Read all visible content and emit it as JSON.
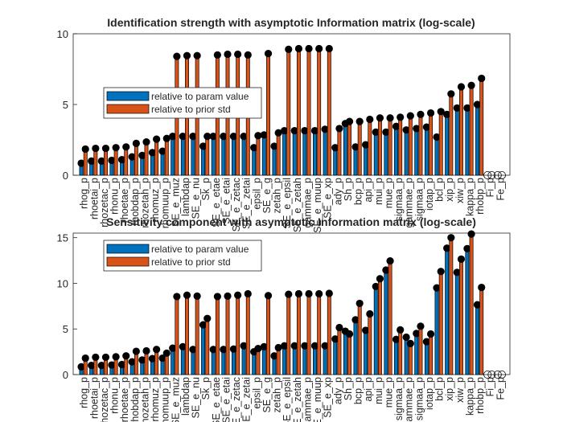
{
  "colors": {
    "blue": "#0072BD",
    "orange": "#D95319",
    "marker": "#000000",
    "axis": "#262626",
    "background": "#ffffff"
  },
  "chart_data": [
    {
      "type": "bar",
      "title": "Identification strength with asymptotic Information matrix (log-scale)",
      "ylim": [
        0,
        10
      ],
      "yticks": [
        0,
        5,
        10
      ],
      "grid": false,
      "legend_position": "upper-left",
      "marker": "filled-circle",
      "categories": [
        "rhog_p",
        "rhoetai_p",
        "rhozetac_p",
        "rhonu_p",
        "rhoetae_p",
        "rhobdap_p",
        "rhozetah_p",
        "rhomuz_p",
        "rhomuup_p",
        "SE_e_muz",
        "lambdap",
        "SE_e_nu",
        "Sk_p",
        "SE_e_etae",
        "SE_e_etai",
        "SE_e_zetac",
        "SE_e_zetai",
        "epsil_p",
        "SE_e_g",
        "zetah_p",
        "SE_e_epsil",
        "SE_e_zetah",
        "gammae_p",
        "SE_e_muup",
        "SE_e_xp",
        "ady_p",
        "Sh_p",
        "bcp_p",
        "api_p",
        "mui_p",
        "mue_p",
        "sigmaa_p",
        "gammae_p",
        "sigmaa_p",
        "iotap_p",
        "bcl_p",
        "xip_p",
        "xiw_p",
        "kappa_p",
        "rhobp_p",
        "Fi_p",
        "Fe_p"
      ],
      "series": [
        {
          "name": "relative to param value",
          "values": [
            0.85,
            1.0,
            1.0,
            1.05,
            1.1,
            1.3,
            1.4,
            1.6,
            1.7,
            2.75,
            2.75,
            2.75,
            2.05,
            2.75,
            2.75,
            2.75,
            2.75,
            1.95,
            2.85,
            2.05,
            3.15,
            3.15,
            3.15,
            3.15,
            3.25,
            1.95,
            3.65,
            2.0,
            2.15,
            3.05,
            3.05,
            3.45,
            3.2,
            3.3,
            3.4,
            2.7,
            4.3,
            4.75,
            4.75,
            5.0,
            0,
            0
          ]
        },
        {
          "name": "relative to prior std",
          "values": [
            1.85,
            1.9,
            1.9,
            1.95,
            2.0,
            2.25,
            2.35,
            2.55,
            2.6,
            8.4,
            8.45,
            8.45,
            2.75,
            8.5,
            8.55,
            8.55,
            8.5,
            2.8,
            8.6,
            3.0,
            8.9,
            8.95,
            8.95,
            8.95,
            8.95,
            3.3,
            3.8,
            3.8,
            3.95,
            4.05,
            4.05,
            4.1,
            4.2,
            4.3,
            4.4,
            4.5,
            5.75,
            6.25,
            6.35,
            6.85,
            0,
            0
          ]
        }
      ]
    },
    {
      "type": "bar",
      "title": "Sensitivity component with asymptotic Information matrix (log-scale)",
      "ylim": [
        0,
        15.5
      ],
      "yticks": [
        0,
        5,
        10,
        15
      ],
      "grid": false,
      "legend_position": "upper-left",
      "marker": "filled-circle",
      "categories": [
        "rhog_p",
        "rhoetai_p",
        "rhozetac_p",
        "rhonu_p",
        "rhoetae_p",
        "rhobdap_p",
        "rhozetah_p",
        "rhomuz_p",
        "rhomuup_p",
        "SE_e_muz",
        "lambdap",
        "SE_e_nu",
        "Sk_p",
        "SE_e_etae",
        "SE_e_etai",
        "SE_e_zetac",
        "SE_e_zetai",
        "epsil_p",
        "SE_e_g",
        "zetah_p",
        "SE_e_epsil",
        "SE_e_zetah",
        "gammae_p",
        "SE_e_muup",
        "SE_e_xp",
        "ady_p",
        "Sh_p",
        "bcp_p",
        "api_p",
        "mui_p",
        "mue_p",
        "sigmaa_p",
        "gammae_p",
        "sigmaa_p",
        "iotap_p",
        "bcl_p",
        "xip_p",
        "xiw_p",
        "kappa_p",
        "rhobp_p",
        "Fi_p",
        "Fe_p"
      ],
      "series": [
        {
          "name": "relative to param value",
          "values": [
            0.85,
            1.0,
            1.0,
            1.05,
            1.1,
            1.4,
            1.6,
            1.75,
            1.8,
            2.9,
            3.05,
            2.75,
            5.45,
            2.75,
            2.75,
            2.8,
            3.15,
            2.5,
            3.05,
            2.05,
            3.15,
            3.15,
            3.15,
            3.15,
            3.15,
            3.9,
            4.75,
            6.0,
            4.85,
            9.65,
            11.45,
            3.85,
            4.1,
            4.5,
            3.6,
            9.5,
            13.85,
            11.2,
            13.8,
            7.65,
            0,
            0
          ]
        },
        {
          "name": "relative to prior std",
          "values": [
            1.8,
            1.9,
            1.9,
            1.95,
            2.05,
            2.55,
            2.6,
            2.75,
            2.35,
            8.55,
            8.7,
            8.6,
            6.15,
            8.55,
            8.6,
            8.7,
            8.85,
            2.85,
            8.65,
            2.95,
            8.8,
            8.85,
            8.85,
            8.85,
            8.9,
            5.15,
            4.45,
            7.8,
            6.65,
            10.5,
            12.45,
            4.9,
            3.4,
            5.3,
            4.45,
            11.3,
            15.0,
            12.65,
            15.4,
            9.55,
            0,
            0
          ]
        }
      ]
    }
  ]
}
